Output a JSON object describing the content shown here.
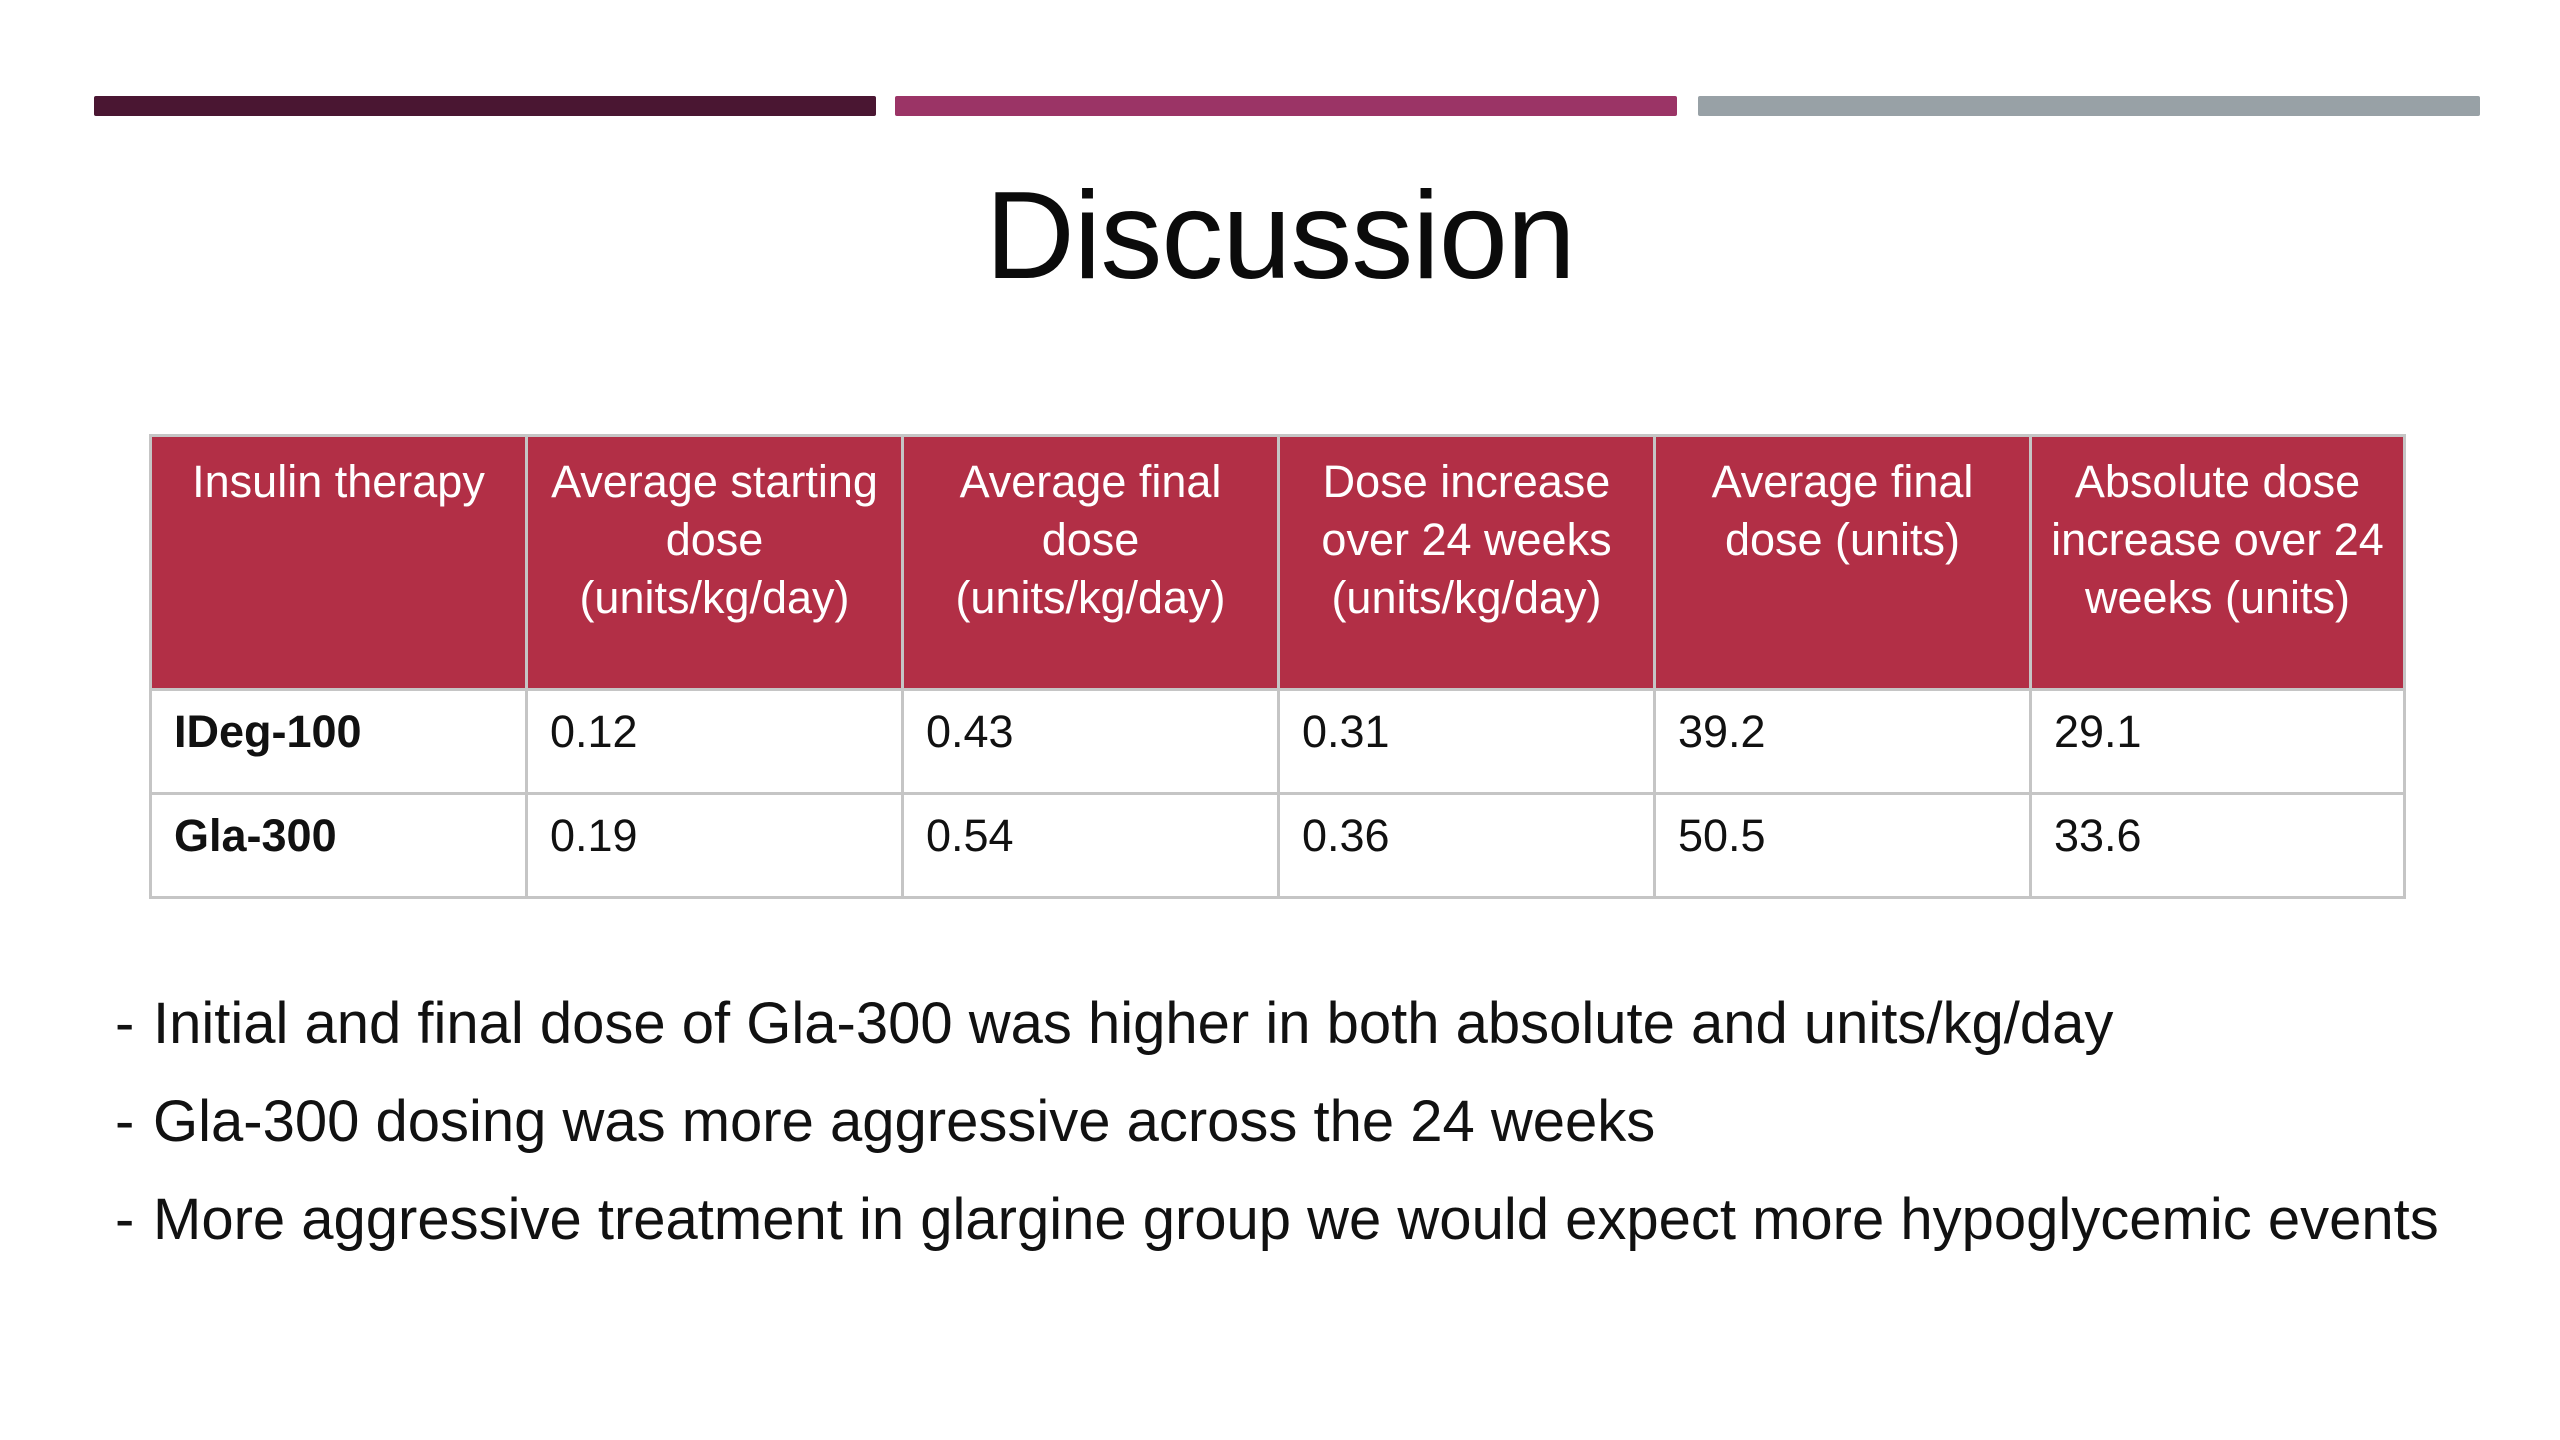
{
  "colors": {
    "bar_1": "#4a1632",
    "bar_2": "#9b3466",
    "bar_3": "#98a1a6",
    "table_header_bg": "#b22f46"
  },
  "slide": {
    "title": "Discussion"
  },
  "table": {
    "headers": [
      "Insulin therapy",
      "Average starting dose (units/kg/day)",
      "Average final dose (units/kg/day)",
      "Dose increase over 24 weeks (units/kg/day)",
      "Average final dose (units)",
      "Absolute dose increase over 24 weeks (units)"
    ],
    "rows": [
      [
        "IDeg-100",
        "0.12",
        "0.43",
        "0.31",
        "39.2",
        "29.1"
      ],
      [
        "Gla-300",
        "0.19",
        "0.54",
        "0.36",
        "50.5",
        "33.6"
      ]
    ]
  },
  "bullets": {
    "marker": "-",
    "items": [
      "Initial and final dose of Gla-300 was higher in both absolute and units/kg/day",
      "Gla-300 dosing was more aggressive across the 24 weeks",
      "More aggressive treatment in glargine group we would expect more hypoglycemic events"
    ]
  }
}
